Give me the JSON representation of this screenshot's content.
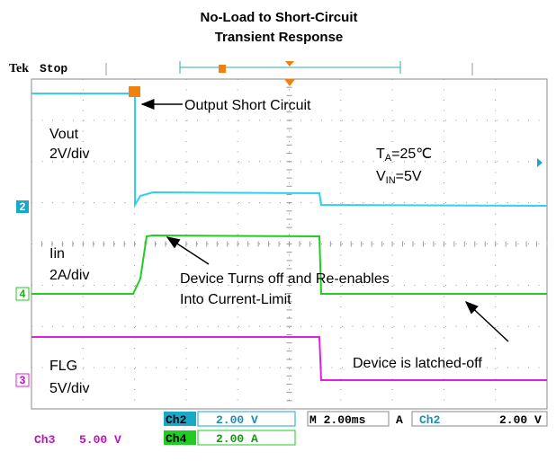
{
  "title": [
    "No-Load to Short-Circuit",
    "Transient Response"
  ],
  "header": {
    "brand": "Tek",
    "status": "Stop"
  },
  "labels": {
    "vout": "Vout",
    "vout_scale": "2V/div",
    "iin": "Iin",
    "iin_scale": "2A/div",
    "flg": "FLG",
    "flg_scale": "5V/div",
    "ta": {
      "main": "T",
      "sub": "A",
      "rest": "=25℃"
    },
    "vin": {
      "main": "V",
      "sub": "IN",
      "rest": "=5V"
    }
  },
  "annotations": [
    "Output Short Circuit",
    "Device Turns off and Re-enables",
    "Into Current-Limit",
    "Device is latched-off"
  ],
  "channel_markers": [
    "2",
    "4",
    "3"
  ],
  "status_bar": {
    "ch2": "Ch2",
    "ch2_scale": "2.00 V",
    "timebase": "M 2.00ms",
    "trig_mode": "A",
    "trig_ch": "Ch2",
    "trig_level": "2.00 V",
    "ch3": "Ch3",
    "ch3_scale": "5.00 V",
    "ch4": "Ch4",
    "ch4_scale": "2.00 A"
  }
}
